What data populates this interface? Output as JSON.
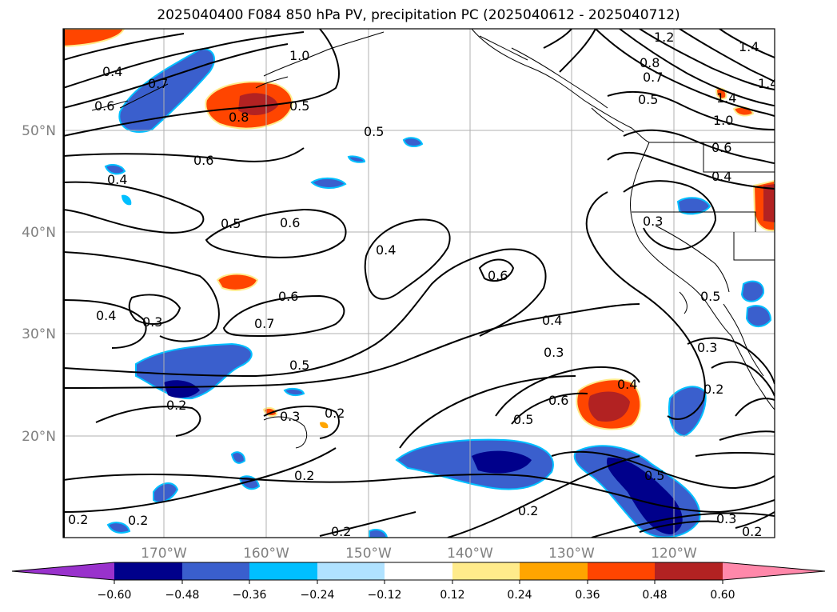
{
  "title": "2025040400 F084 850 hPa PV, precipitation PC (2025040612 - 2025040712)",
  "latitude_labels": [
    "50°N",
    "40°N",
    "30°N",
    "20°N"
  ],
  "longitude_labels": [
    "170°W",
    "160°W",
    "150°W",
    "140°W",
    "130°W",
    "120°W"
  ],
  "colorbar": {
    "ticks": [
      "−0.60",
      "−0.48",
      "−0.36",
      "−0.24",
      "−0.12",
      "0.12",
      "0.24",
      "0.36",
      "0.48",
      "0.60"
    ],
    "colors": [
      "#9932cc",
      "#00008b",
      "#3a5fcd",
      "#00bfff",
      "#b0e2ff",
      "#ffffff",
      "#ffeb8b",
      "#ffa500",
      "#ff4500",
      "#b22222",
      "#ff88aa"
    ]
  },
  "contour_labels": [
    {
      "text": "0.4"
    },
    {
      "text": "0.6"
    },
    {
      "text": "0.7"
    },
    {
      "text": "1.0"
    },
    {
      "text": "0.8"
    },
    {
      "text": "0.5"
    },
    {
      "text": "0.5"
    },
    {
      "text": "0.6"
    },
    {
      "text": "0.4"
    },
    {
      "text": "0.5"
    },
    {
      "text": "0.6"
    },
    {
      "text": "0.4"
    },
    {
      "text": "0.6"
    },
    {
      "text": "0.4"
    },
    {
      "text": "0.3"
    },
    {
      "text": "0.6"
    },
    {
      "text": "0.7"
    },
    {
      "text": "0.5"
    },
    {
      "text": "0.4"
    },
    {
      "text": "0.3"
    },
    {
      "text": "0.6"
    },
    {
      "text": "0.5"
    },
    {
      "text": "0.2"
    },
    {
      "text": "0.3"
    },
    {
      "text": "0.2"
    },
    {
      "text": "0.2"
    },
    {
      "text": "0.2"
    },
    {
      "text": "0.2"
    },
    {
      "text": "0.2"
    },
    {
      "text": "0.2"
    },
    {
      "text": "0.5"
    },
    {
      "text": "0.3"
    },
    {
      "text": "0.2"
    },
    {
      "text": "0.4"
    },
    {
      "text": "0.2"
    },
    {
      "text": "0.3"
    },
    {
      "text": "0.5"
    },
    {
      "text": "0.3"
    },
    {
      "text": "1.2"
    },
    {
      "text": "1.4"
    },
    {
      "text": "1.4"
    },
    {
      "text": "0.8"
    },
    {
      "text": "0.7"
    },
    {
      "text": "0.5"
    },
    {
      "text": "1.4"
    },
    {
      "text": "1.0"
    },
    {
      "text": "0.6"
    },
    {
      "text": "0.4"
    }
  ]
}
